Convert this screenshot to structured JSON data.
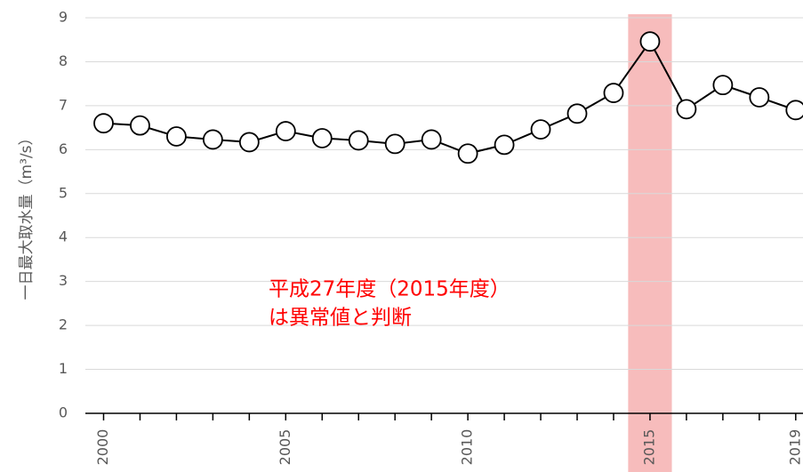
{
  "chart_data": {
    "type": "line",
    "y_label": "一日最大取水量（m³/s）",
    "annotation": [
      "平成27年度（2015年度）",
      "は異常値と判断"
    ],
    "x": [
      2000,
      2001,
      2002,
      2003,
      2004,
      2005,
      2006,
      2007,
      2008,
      2009,
      2010,
      2011,
      2012,
      2013,
      2014,
      2015,
      2016,
      2017,
      2018,
      2019
    ],
    "values": [
      6.6,
      6.55,
      6.3,
      6.23,
      6.17,
      6.42,
      6.26,
      6.21,
      6.13,
      6.23,
      5.91,
      6.11,
      6.46,
      6.82,
      7.29,
      8.46,
      6.92,
      7.47,
      7.19,
      6.9
    ],
    "color": "#000000",
    "xlim": [
      1999.5,
      2019.2
    ],
    "xticks": [
      2000,
      2005,
      2010,
      2015,
      2019
    ],
    "ylim": [
      0,
      9
    ],
    "yticks": [
      0,
      1,
      2,
      3,
      4,
      5,
      6,
      7,
      8,
      9
    ],
    "grid": true,
    "highlight_range": [
      2014.4,
      2015.6
    ],
    "highlight_color": "#f4a6a6"
  }
}
